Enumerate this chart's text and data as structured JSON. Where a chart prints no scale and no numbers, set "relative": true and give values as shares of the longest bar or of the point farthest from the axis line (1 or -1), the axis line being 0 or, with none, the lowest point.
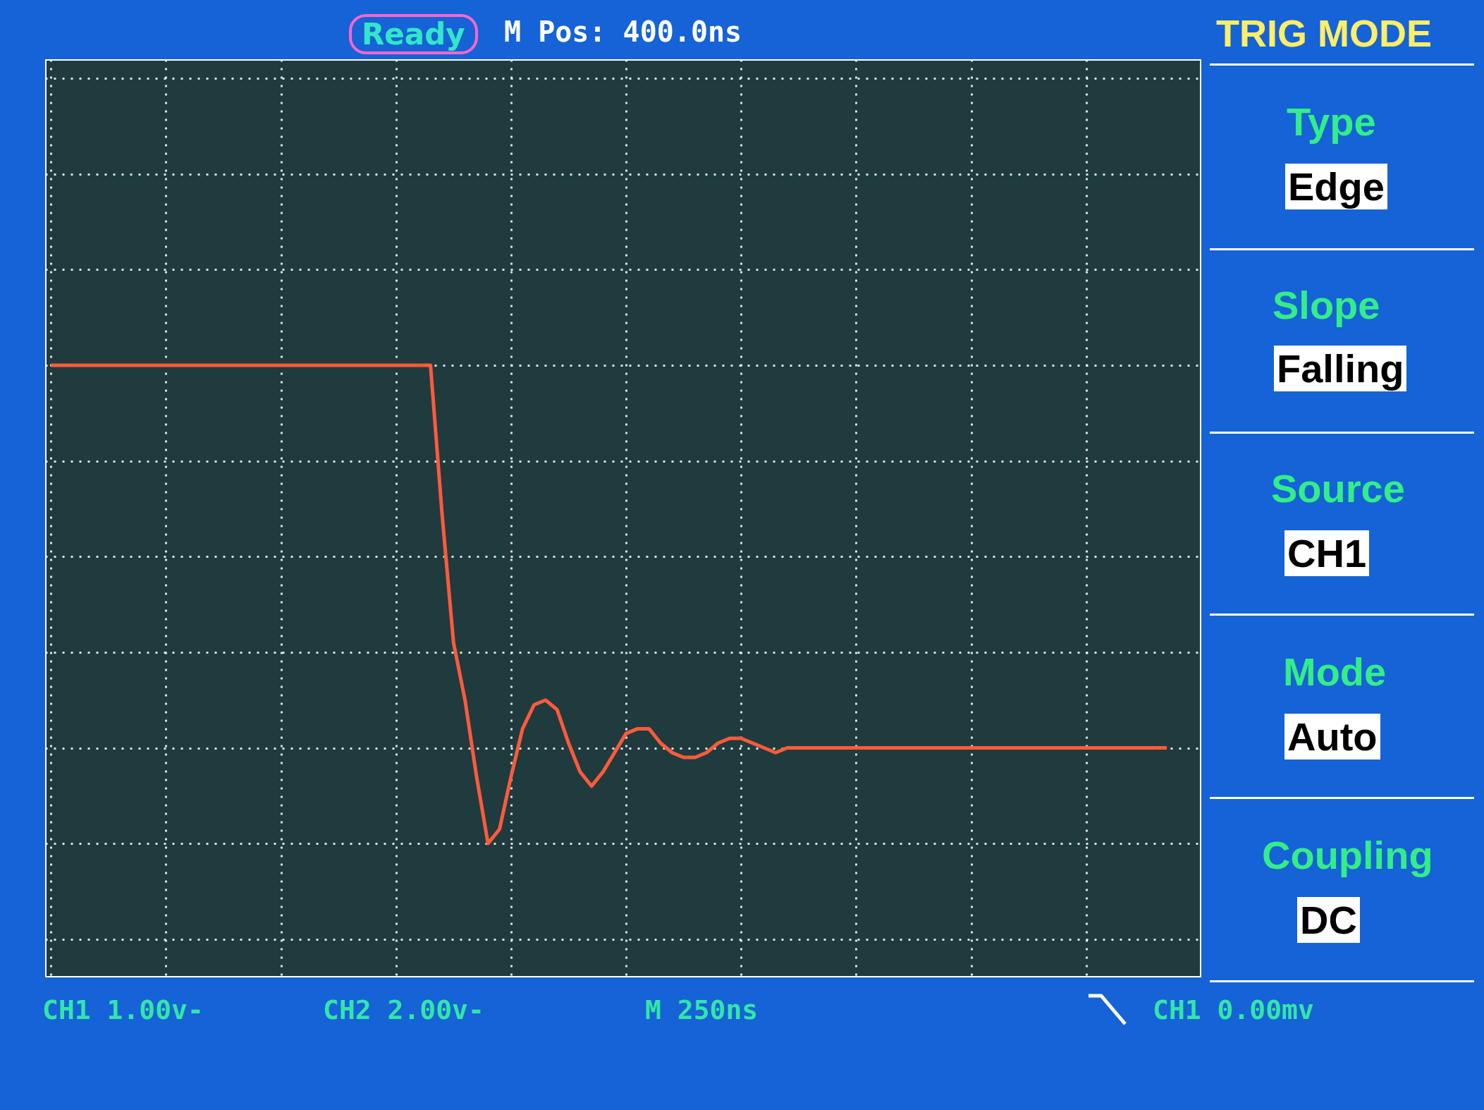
{
  "chart_data": {
    "type": "line",
    "relative": true,
    "grid": true,
    "categories": [
      null,
      null,
      null,
      null,
      null,
      null,
      null,
      null,
      null,
      null,
      null,
      null,
      null,
      null,
      null,
      null,
      null,
      null,
      null,
      null,
      null,
      null,
      null,
      null,
      null,
      null,
      null,
      null,
      null,
      null,
      null,
      null,
      null,
      null,
      null,
      null,
      null,
      null,
      null,
      null,
      null,
      null,
      null,
      null,
      null,
      null,
      null,
      null,
      null,
      null,
      null,
      null,
      null,
      null,
      null,
      null,
      null,
      null,
      null,
      null,
      null,
      null,
      null,
      null,
      null,
      null,
      null,
      null,
      null,
      null,
      null,
      null,
      null,
      null,
      null,
      null,
      null,
      null,
      null,
      null,
      null,
      null,
      null,
      null,
      null,
      null,
      null,
      null,
      null,
      null,
      null,
      null,
      null,
      null,
      null,
      null,
      null,
      null
    ],
    "series": [
      {
        "color": "#ff5a3c",
        "values": [
          1,
          1,
          1,
          1,
          1,
          1,
          1,
          1,
          1,
          1,
          1,
          1,
          1,
          1,
          1,
          1,
          1,
          1,
          1,
          1,
          1,
          1,
          1,
          1,
          1,
          1,
          1,
          1,
          1,
          1,
          1,
          1,
          1,
          1,
          0.69,
          0.42,
          0.3,
          0.14,
          0,
          0.03,
          0.14,
          0.24,
          0.29,
          0.3,
          0.28,
          0.21,
          0.15,
          0.12,
          0.15,
          0.19,
          0.23,
          0.24,
          0.24,
          0.21,
          0.19,
          0.18,
          0.18,
          0.19,
          0.21,
          0.22,
          0.22,
          0.21,
          0.2,
          0.19,
          0.2,
          0.2,
          0.2,
          0.2,
          0.2,
          0.2,
          0.2,
          0.2,
          0.2,
          0.2,
          0.2,
          0.2,
          0.2,
          0.2,
          0.2,
          0.2,
          0.2,
          0.2,
          0.2,
          0.2,
          0.2,
          0.2,
          0.2,
          0.2,
          0.2,
          0.2,
          0.2,
          0.2,
          0.2,
          0.2,
          0.2,
          0.2,
          0.2,
          0.2
        ]
      }
    ],
    "annotations": [
      "Ready",
      "M Pos: 400.0ns",
      "TRIG MODE",
      "Type",
      "Edge",
      "Slope",
      "Falling",
      "Source",
      "CH1",
      "Mode",
      "Auto",
      "Coupling",
      "DC",
      "CH1 1.00v-",
      "CH2 2.00v-",
      "M 250ns",
      "CH1 0.00mv"
    ]
  }
}
